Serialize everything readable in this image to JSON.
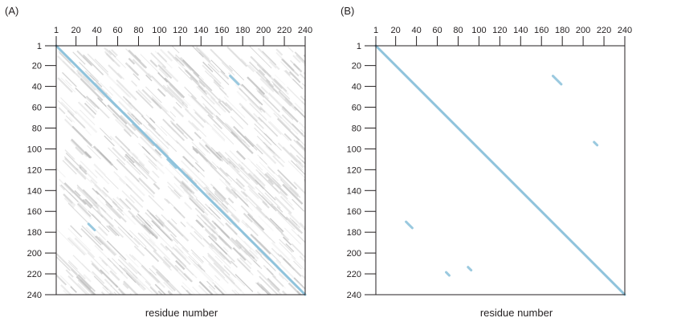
{
  "panels": [
    {
      "label": "(A)",
      "xlabel": "residue number",
      "x_ticks": [
        "1",
        "20",
        "40",
        "60",
        "80",
        "100",
        "120",
        "140",
        "160",
        "180",
        "200",
        "220",
        "240"
      ],
      "y_ticks": [
        "1",
        "20",
        "40",
        "60",
        "80",
        "100",
        "120",
        "140",
        "160",
        "180",
        "200",
        "220",
        "240"
      ],
      "background": "noisy-gray",
      "diagonal_color": "#8fc3dc",
      "features": [
        {
          "x": 172,
          "y": 34,
          "len": 8
        },
        {
          "x": 112,
          "y": 114,
          "len": 8
        },
        {
          "x": 35,
          "y": 175,
          "len": 6
        }
      ]
    },
    {
      "label": "(B)",
      "xlabel": "residue number",
      "x_ticks": [
        "1",
        "20",
        "40",
        "60",
        "80",
        "100",
        "120",
        "140",
        "160",
        "180",
        "200",
        "220",
        "240"
      ],
      "y_ticks": [
        "1",
        "20",
        "40",
        "60",
        "80",
        "100",
        "120",
        "140",
        "160",
        "180",
        "200",
        "220",
        "240"
      ],
      "background": "clean-white",
      "diagonal_color": "#8fc3dc",
      "features": [
        {
          "x": 175,
          "y": 34,
          "len": 8
        },
        {
          "x": 33,
          "y": 173,
          "len": 6
        },
        {
          "x": 70,
          "y": 220,
          "len": 3
        },
        {
          "x": 91,
          "y": 215,
          "len": 3
        },
        {
          "x": 212,
          "y": 95,
          "len": 3
        }
      ]
    }
  ],
  "axis_range": [
    1,
    240
  ]
}
